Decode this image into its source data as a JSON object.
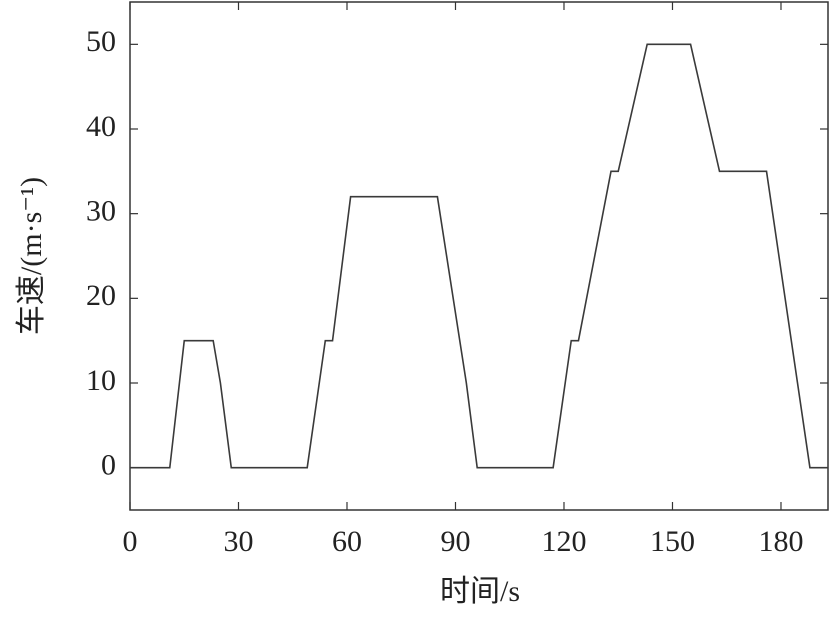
{
  "chart_data": {
    "type": "line",
    "x_label": "时间/s",
    "y_label": "车速/(m·s⁻¹)",
    "x": [
      0,
      11,
      15,
      23,
      25,
      28,
      49,
      54,
      56,
      61,
      85,
      93,
      96,
      117,
      122,
      124,
      133,
      135,
      143,
      155,
      163,
      176,
      188,
      193
    ],
    "series": [
      {
        "color": "#3a3a3a",
        "values": [
          0,
          0,
          15,
          15,
          10,
          0,
          0,
          15,
          15,
          32,
          32,
          10,
          0,
          0,
          15,
          15,
          35,
          35,
          50,
          50,
          35,
          35,
          0,
          0
        ]
      }
    ],
    "xlim": [
      0,
      193
    ],
    "xticks": [
      0,
      30,
      60,
      90,
      120,
      150,
      180
    ],
    "ylim": [
      -5,
      55
    ],
    "yticks": [
      0,
      10,
      20,
      30,
      40,
      50
    ],
    "grid": false
  }
}
